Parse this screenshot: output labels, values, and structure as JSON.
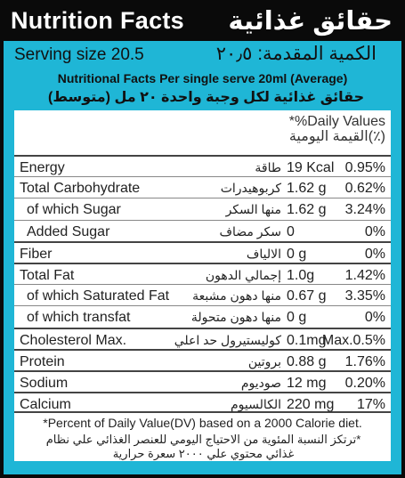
{
  "header": {
    "title_en": "Nutrition Facts",
    "title_ar": "حقائق غذائية"
  },
  "serving": {
    "en": "Serving size 20.5",
    "ar": "الكمية المقدمة: ٢٠٫٥"
  },
  "subtitle": {
    "en": "Nutritional Facts  Per single serve 20ml (Average)",
    "ar": "حقائق غذائية لكل وجبة واحدة ٢٠ مل (متوسط)"
  },
  "dv_header": {
    "en": "*%Daily Values",
    "ar": "(٪)القيمة اليومية"
  },
  "rows": [
    {
      "en": "Energy",
      "ar": "طاقة",
      "amount": "19 Kcal",
      "dv": "0.95%"
    },
    {
      "en": "Total Carbohydrate",
      "ar": "كربوهيدرات",
      "amount": "1.62 g",
      "dv": "0.62%"
    },
    {
      "en": "of which  Sugar",
      "ar": "منها السكر",
      "amount": "1.62 g",
      "dv": "3.24%"
    },
    {
      "en": "Added Sugar",
      "ar": "سكر مضاف",
      "amount": "0",
      "dv": "0%"
    },
    {
      "en": "Fiber",
      "ar": "الالياف",
      "amount": "0 g",
      "dv": "0%"
    },
    {
      "en": "Total Fat",
      "ar": "إجمالي الدهون",
      "amount": "1.0g",
      "dv": "1.42%"
    },
    {
      "en": "of which Saturated Fat",
      "ar": "منها دهون مشبعة",
      "amount": "0.67 g",
      "dv": "3.35%"
    },
    {
      "en": "of which transfat",
      "ar": "منها دهون متحولة",
      "amount": "0 g",
      "dv": "0%"
    },
    {
      "en": "Cholesterol Max.",
      "ar": "كوليستيرول حد اعلي",
      "amount": "0.1mg",
      "dv": "Max.0.5%"
    },
    {
      "en": "Protein",
      "ar": "بروتين",
      "amount": "0.88 g",
      "dv": "1.76%"
    },
    {
      "en": "Sodium",
      "ar": "صوديوم",
      "amount": "12 mg",
      "dv": "0.20%"
    },
    {
      "en": "Calcium",
      "ar": "الكالسيوم",
      "amount": "220 mg",
      "dv": "17%"
    }
  ],
  "footer": {
    "en": "*Percent of Daily Value(DV) based on a 2000 Calorie diet.",
    "ar": "*ترتكز النسبة المئوية من الاحتياج اليومي للعنصر الغذائي علي نظام غذائي محتوي علي ٢٠٠٠ سعرة حرارية"
  },
  "colors": {
    "panel": "#1fb6d6",
    "title_bar": "#0a0a0a"
  }
}
